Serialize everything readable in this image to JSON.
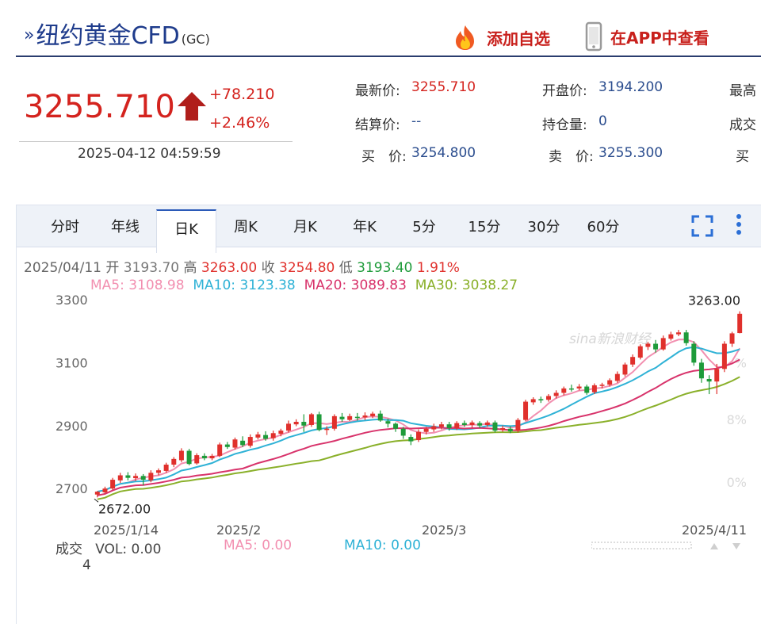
{
  "header": {
    "chevron": "»",
    "title": "纽约黄金CFD",
    "code": "(GC)",
    "add_watch": "添加自选",
    "open_app": "在APP中查看"
  },
  "price": {
    "last": "3255.710",
    "change": "+78.210",
    "change_pct": "+2.46%",
    "time": "2025-04-12 04:59:59"
  },
  "quote": {
    "latest_label": "最新价:",
    "latest": "3255.710",
    "open_label": "开盘价:",
    "open": "3194.200",
    "high_label": "最高",
    "settle_label": "结算价:",
    "settle": "--",
    "oi_label": "持仓量:",
    "oi": "0",
    "vol_label": "成交",
    "bid_label": "买　价:",
    "bid": "3254.800",
    "ask_label": "卖　价:",
    "ask": "3255.300",
    "bid2_label": "买"
  },
  "tabs": [
    "分时",
    "年线",
    "日K",
    "周K",
    "月K",
    "年K",
    "5分",
    "15分",
    "30分",
    "60分"
  ],
  "active_tab": "日K",
  "ohlc": {
    "date": "2025/04/11",
    "open_label": "开",
    "open": "3193.70",
    "high_label": "高",
    "high": "3263.00",
    "close_label": "收",
    "close": "3254.80",
    "low_label": "低",
    "low": "3193.40",
    "pct": "1.91%"
  },
  "ma": {
    "ma5_label": "MA5:",
    "ma5": "3108.98",
    "ma10_label": "MA10:",
    "ma10": "3123.38",
    "ma20_label": "MA20:",
    "ma20": "3089.83",
    "ma30_label": "MA30:",
    "ma30": "3038.27"
  },
  "volume": {
    "label": "成交",
    "vol_label": "VOL:",
    "vol": "0.00",
    "ma5_label": "MA5:",
    "ma5": "0.00",
    "ma10_label": "MA10:",
    "ma10": "0.00",
    "scale": "4"
  },
  "watermark": "sina新浪财经",
  "colors": {
    "up": "#e0302c",
    "down": "#1e9b3a",
    "ma5": "#f28fb0",
    "ma10": "#2fb2d6",
    "ma20": "#d8336b",
    "ma30": "#8ab02a",
    "title": "#1f3c8c"
  },
  "chart_data": {
    "type": "candlestick",
    "ylim": [
      2640,
      3320
    ],
    "y_ticks": [
      "3300",
      "3100",
      "2900",
      "2700"
    ],
    "right_ticks": [
      "%",
      "8%",
      "0%"
    ],
    "x_ticks": [
      "2025/1/14",
      "2025/2",
      "2025/3",
      "2025/4/11"
    ],
    "max_label": "3263.00",
    "min_label": "2672.00",
    "candles": [
      [
        2681,
        2690,
        2672,
        2692
      ],
      [
        2688,
        2700,
        2684,
        2706
      ],
      [
        2700,
        2728,
        2695,
        2734
      ],
      [
        2726,
        2742,
        2718,
        2750
      ],
      [
        2742,
        2734,
        2726,
        2752
      ],
      [
        2733,
        2740,
        2724,
        2748
      ],
      [
        2740,
        2728,
        2710,
        2746
      ],
      [
        2726,
        2750,
        2720,
        2758
      ],
      [
        2750,
        2758,
        2742,
        2764
      ],
      [
        2756,
        2776,
        2750,
        2782
      ],
      [
        2776,
        2794,
        2768,
        2800
      ],
      [
        2790,
        2820,
        2784,
        2828
      ],
      [
        2820,
        2778,
        2774,
        2826
      ],
      [
        2780,
        2806,
        2776,
        2812
      ],
      [
        2804,
        2796,
        2790,
        2812
      ],
      [
        2796,
        2804,
        2790,
        2810
      ],
      [
        2804,
        2840,
        2800,
        2846
      ],
      [
        2840,
        2832,
        2826,
        2848
      ],
      [
        2830,
        2856,
        2824,
        2862
      ],
      [
        2852,
        2838,
        2832,
        2866
      ],
      [
        2836,
        2864,
        2830,
        2872
      ],
      [
        2862,
        2872,
        2856,
        2880
      ],
      [
        2870,
        2858,
        2852,
        2882
      ],
      [
        2860,
        2876,
        2852,
        2884
      ],
      [
        2874,
        2884,
        2866,
        2890
      ],
      [
        2884,
        2906,
        2878,
        2916
      ],
      [
        2904,
        2912,
        2898,
        2920
      ],
      [
        2912,
        2900,
        2880,
        2936
      ],
      [
        2902,
        2936,
        2896,
        2940
      ],
      [
        2936,
        2886,
        2882,
        2944
      ],
      [
        2886,
        2890,
        2870,
        2898
      ],
      [
        2890,
        2930,
        2884,
        2936
      ],
      [
        2928,
        2920,
        2912,
        2940
      ],
      [
        2918,
        2930,
        2914,
        2938
      ],
      [
        2928,
        2924,
        2916,
        2940
      ],
      [
        2926,
        2932,
        2918,
        2942
      ],
      [
        2930,
        2938,
        2924,
        2944
      ],
      [
        2938,
        2916,
        2912,
        2948
      ],
      [
        2914,
        2906,
        2894,
        2922
      ],
      [
        2906,
        2890,
        2880,
        2910
      ],
      [
        2890,
        2868,
        2858,
        2896
      ],
      [
        2864,
        2850,
        2838,
        2872
      ],
      [
        2854,
        2880,
        2848,
        2888
      ],
      [
        2880,
        2890,
        2872,
        2896
      ],
      [
        2888,
        2898,
        2880,
        2906
      ],
      [
        2896,
        2904,
        2888,
        2912
      ],
      [
        2904,
        2892,
        2884,
        2912
      ],
      [
        2892,
        2908,
        2886,
        2914
      ],
      [
        2908,
        2902,
        2896,
        2916
      ],
      [
        2902,
        2910,
        2894,
        2916
      ],
      [
        2908,
        2900,
        2892,
        2914
      ],
      [
        2902,
        2910,
        2896,
        2916
      ],
      [
        2910,
        2884,
        2878,
        2916
      ],
      [
        2886,
        2892,
        2880,
        2900
      ],
      [
        2890,
        2882,
        2876,
        2898
      ],
      [
        2884,
        2918,
        2878,
        2924
      ],
      [
        2918,
        2976,
        2914,
        2982
      ],
      [
        2974,
        2984,
        2966,
        2990
      ],
      [
        2984,
        2980,
        2972,
        2992
      ],
      [
        2982,
        2994,
        2976,
        3000
      ],
      [
        2994,
        3004,
        2986,
        3012
      ],
      [
        3004,
        3018,
        2996,
        3024
      ],
      [
        3018,
        3016,
        3008,
        3030
      ],
      [
        3018,
        3024,
        3012,
        3032
      ],
      [
        3024,
        3004,
        2998,
        3030
      ],
      [
        3006,
        3028,
        3000,
        3034
      ],
      [
        3026,
        3030,
        3018,
        3036
      ],
      [
        3030,
        3044,
        3024,
        3050
      ],
      [
        3042,
        3064,
        3036,
        3072
      ],
      [
        3062,
        3094,
        3056,
        3100
      ],
      [
        3094,
        3118,
        3086,
        3126
      ],
      [
        3116,
        3152,
        3110,
        3158
      ],
      [
        3150,
        3160,
        3140,
        3166
      ],
      [
        3160,
        3142,
        3132,
        3172
      ],
      [
        3142,
        3178,
        3138,
        3186
      ],
      [
        3176,
        3190,
        3170,
        3198
      ],
      [
        3190,
        3196,
        3184,
        3204
      ],
      [
        3196,
        3162,
        3154,
        3204
      ],
      [
        3160,
        3100,
        3090,
        3168
      ],
      [
        3100,
        3050,
        3036,
        3112
      ],
      [
        3048,
        3040,
        3000,
        3060
      ],
      [
        3040,
        3080,
        3000,
        3096
      ],
      [
        3080,
        3160,
        3070,
        3168
      ],
      [
        3160,
        3193,
        3150,
        3198
      ],
      [
        3194,
        3255,
        3193,
        3263
      ]
    ]
  }
}
